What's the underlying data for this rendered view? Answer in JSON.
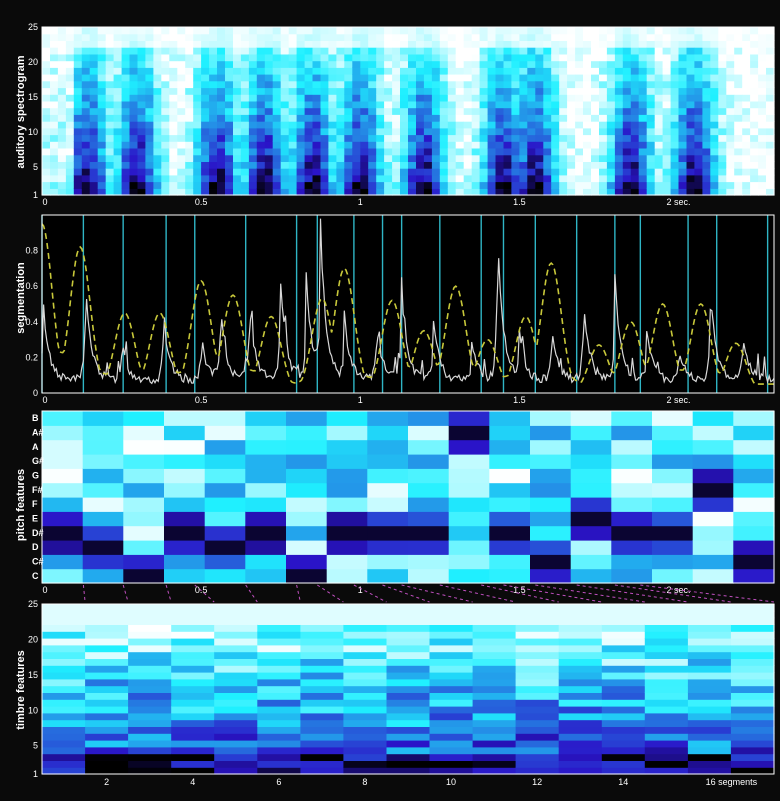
{
  "chart_data": [
    {
      "type": "heatmap",
      "ylabel": "auditory spectrogram",
      "y_ticks": [
        "1",
        "5",
        "10",
        "15",
        "20",
        "25"
      ],
      "x_ticks": [
        "0",
        "0.5",
        "1",
        "1.5",
        "2 sec."
      ],
      "ylim": [
        1,
        25
      ],
      "xlim": [
        0,
        2.3
      ],
      "colors": {
        "low": "#ffffff",
        "mid": "#1ff0ff",
        "high": "#2a14c8",
        "peak": "#000000"
      }
    },
    {
      "type": "line",
      "ylabel": "segmentation",
      "y_ticks": [
        "0",
        "0.2",
        "0.4",
        "0.6",
        "0.8"
      ],
      "x_ticks": [
        "0",
        "0.5",
        "1",
        "1.5",
        "2 sec."
      ],
      "ylim": [
        0,
        1
      ],
      "xlim": [
        0,
        2.3
      ],
      "series": [
        {
          "style": "solid-white",
          "peaks_x": [
            0.003,
            0.135,
            0.25,
            0.38,
            0.5,
            0.56,
            0.65,
            0.75,
            0.83,
            0.875,
            0.95,
            1.05,
            1.13,
            1.23,
            1.35,
            1.43,
            1.5,
            1.6,
            1.7,
            1.8,
            1.9,
            2.0,
            2.1,
            2.2
          ],
          "peaks_y": [
            0.45,
            0.58,
            0.22,
            0.35,
            0.25,
            0.42,
            0.47,
            0.55,
            0.6,
            0.8,
            0.35,
            0.32,
            0.5,
            0.35,
            0.22,
            0.9,
            0.22,
            0.3,
            0.48,
            0.57,
            0.28,
            0.18,
            0.5,
            0.3
          ],
          "baseline": 0.05
        },
        {
          "style": "dashed-yellow",
          "peaks_x": [
            0.0,
            0.12,
            0.26,
            0.37,
            0.5,
            0.6,
            0.72,
            0.88,
            0.95,
            1.1,
            1.2,
            1.3,
            1.4,
            1.52,
            1.6,
            1.75,
            1.85,
            1.95,
            2.07,
            2.18,
            2.27
          ],
          "peaks_y": [
            0.95,
            0.82,
            0.45,
            0.45,
            0.63,
            0.55,
            0.43,
            0.53,
            0.7,
            0.52,
            0.35,
            0.6,
            0.3,
            0.43,
            0.73,
            0.27,
            0.4,
            0.5,
            0.5,
            0.28,
            0.05
          ]
        }
      ],
      "segment_boundaries": [
        0.0,
        0.13,
        0.255,
        0.39,
        0.48,
        0.64,
        0.8,
        0.865,
        0.98,
        1.07,
        1.13,
        1.25,
        1.38,
        1.45,
        1.55,
        1.68,
        1.8,
        1.88,
        2.03,
        2.12,
        2.28
      ],
      "colors": {
        "background": "#000000",
        "boundary": "#2fb5c5",
        "white_curve": "#d8d8d8",
        "yellow_curve": "#c8c83a"
      }
    },
    {
      "type": "heatmap",
      "ylabel": "pitch features",
      "y_ticks": [
        "C",
        "C#",
        "D",
        "D#",
        "E",
        "F",
        "F#",
        "G",
        "G#",
        "A",
        "A#",
        "B"
      ],
      "x_ticks": [
        "0",
        "0.5",
        "1",
        "1.5",
        "2 sec."
      ],
      "segments": 18,
      "colors": {
        "low": "#ffffff",
        "mid": "#1ff0ff",
        "high": "#2a14c8",
        "peak": "#000000"
      }
    },
    {
      "type": "heatmap",
      "ylabel": "timbre features",
      "y_ticks": [
        "1",
        "5",
        "10",
        "15",
        "20",
        "25"
      ],
      "x_ticks": [
        "2",
        "4",
        "6",
        "8",
        "10",
        "12",
        "14",
        "16 segments"
      ],
      "segments": 17,
      "ylim": [
        1,
        25
      ],
      "colors": {
        "low": "#ffffff",
        "mid": "#1ff0ff",
        "high": "#2a14c8",
        "peak": "#000000"
      }
    }
  ]
}
